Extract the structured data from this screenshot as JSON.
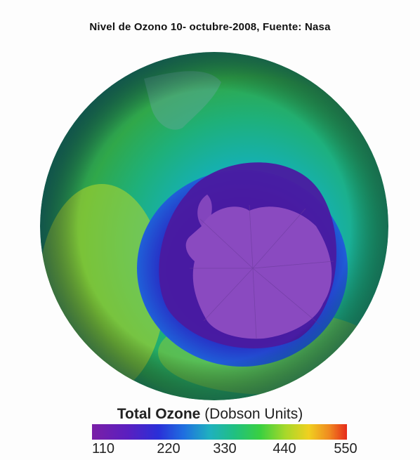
{
  "title": "Nivel de Ozono  10- octubre-2008, Fuente: Nasa",
  "legend": {
    "title_bold": "Total Ozone",
    "title_rest": " (Dobson Units)",
    "ticks": [
      "110",
      "220",
      "330",
      "440",
      "550"
    ]
  },
  "colors": {
    "hole_low": "#7a1fa6",
    "mid": "#1fb0c0",
    "high": "#e62a1a"
  }
}
